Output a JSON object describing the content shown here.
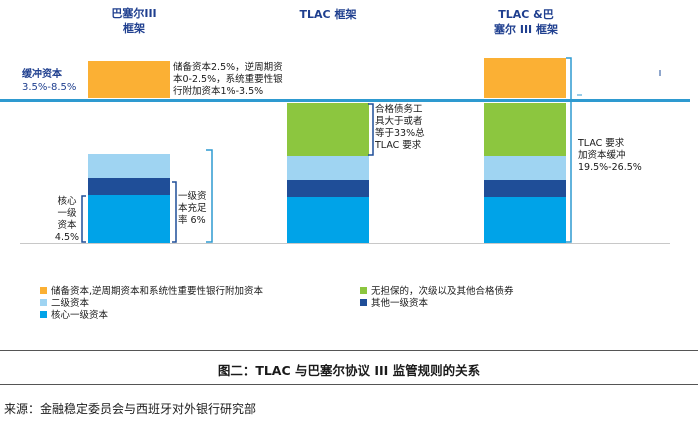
{
  "columns": {
    "basel": {
      "title_line1": "巴塞尔III",
      "title_line2": "框架"
    },
    "tlac": {
      "title_line1": "TLAC 框架"
    },
    "combined": {
      "title_line1": "TLAC &巴",
      "title_line2": "塞尔 III 框架"
    }
  },
  "buffer": {
    "label": "缓冲资本",
    "range": "3.5%-8.5%"
  },
  "annotations": {
    "basel_buffer": [
      "储备资本2.5%，逆周期资",
      "本0-2.5%，系统重要性银",
      "行附加资本1%-3.5%"
    ],
    "core_tier1": [
      "核心",
      "一级",
      "资本",
      "4.5%"
    ],
    "tier1_adequacy": [
      "一级资",
      "本充足",
      "率 6%"
    ],
    "tlac_eligible": [
      "合格债务工",
      "具大于或者",
      "等于33%总",
      "TLAC 要求"
    ],
    "tlac_requirement": [
      "TLAC 要求",
      "加资本缓冲",
      "19.5%-26.5%"
    ]
  },
  "legend": {
    "buffer": "储备资本,逆周期资本和系统性重要性银行附加资本",
    "tier2": "二级资本",
    "core": "核心一级资本",
    "unsecured": "无担保的，次级以及其他合格债券",
    "other_tier1": "其他一级资本"
  },
  "caption": "图二：TLAC 与巴塞尔协议 III 监管规则的关系",
  "source": "来源：金融稳定委员会与西班牙对外银行研究部",
  "colors": {
    "orange": "#fbb034",
    "green": "#8cc63f",
    "light_blue": "#9fd4f2",
    "navy": "#1f4e98",
    "cyan": "#00a3e8",
    "line": "#2e9ad0"
  }
}
